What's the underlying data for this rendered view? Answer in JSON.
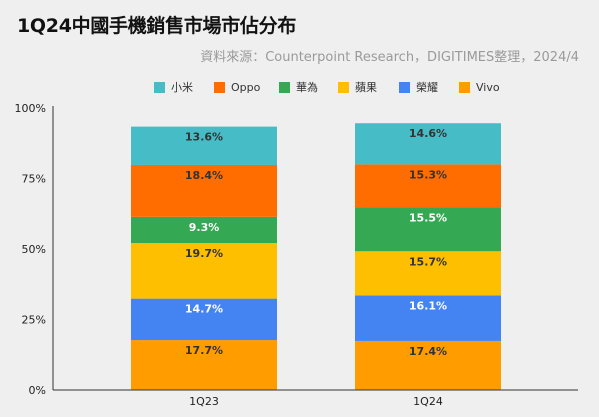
{
  "header": {
    "title": "1Q24中國手機銷售市場市佔分布",
    "source": "資料來源：Counterpoint Research，DIGITIMES整理，2024/4"
  },
  "chart_data": {
    "type": "bar",
    "stacked": true,
    "percent": true,
    "categories": [
      "1Q23",
      "1Q24"
    ],
    "series": [
      {
        "name": "Vivo",
        "color": "#ff9d00",
        "label_color": "#333333",
        "values": [
          17.7,
          17.4
        ]
      },
      {
        "name": "榮耀",
        "color": "#4484f2",
        "label_color": "#ffffff",
        "values": [
          14.7,
          16.1
        ]
      },
      {
        "name": "蘋果",
        "color": "#fdbf00",
        "label_color": "#333333",
        "values": [
          19.7,
          15.7
        ]
      },
      {
        "name": "華為",
        "color": "#34a853",
        "label_color": "#ffffff",
        "values": [
          9.3,
          15.5
        ]
      },
      {
        "name": "Oppo",
        "color": "#ff6d01",
        "label_color": "#333333",
        "values": [
          18.4,
          15.3
        ]
      },
      {
        "name": "小米",
        "color": "#46bdc6",
        "label_color": "#333333",
        "values": [
          13.6,
          14.6
        ]
      }
    ],
    "legend_order": [
      "小米",
      "Oppo",
      "華為",
      "蘋果",
      "榮耀",
      "Vivo"
    ],
    "legend_position": "top",
    "y_ticks": [
      "0%",
      "25%",
      "50%",
      "75%",
      "100%"
    ],
    "ylim": [
      0,
      100
    ],
    "grid": false
  }
}
